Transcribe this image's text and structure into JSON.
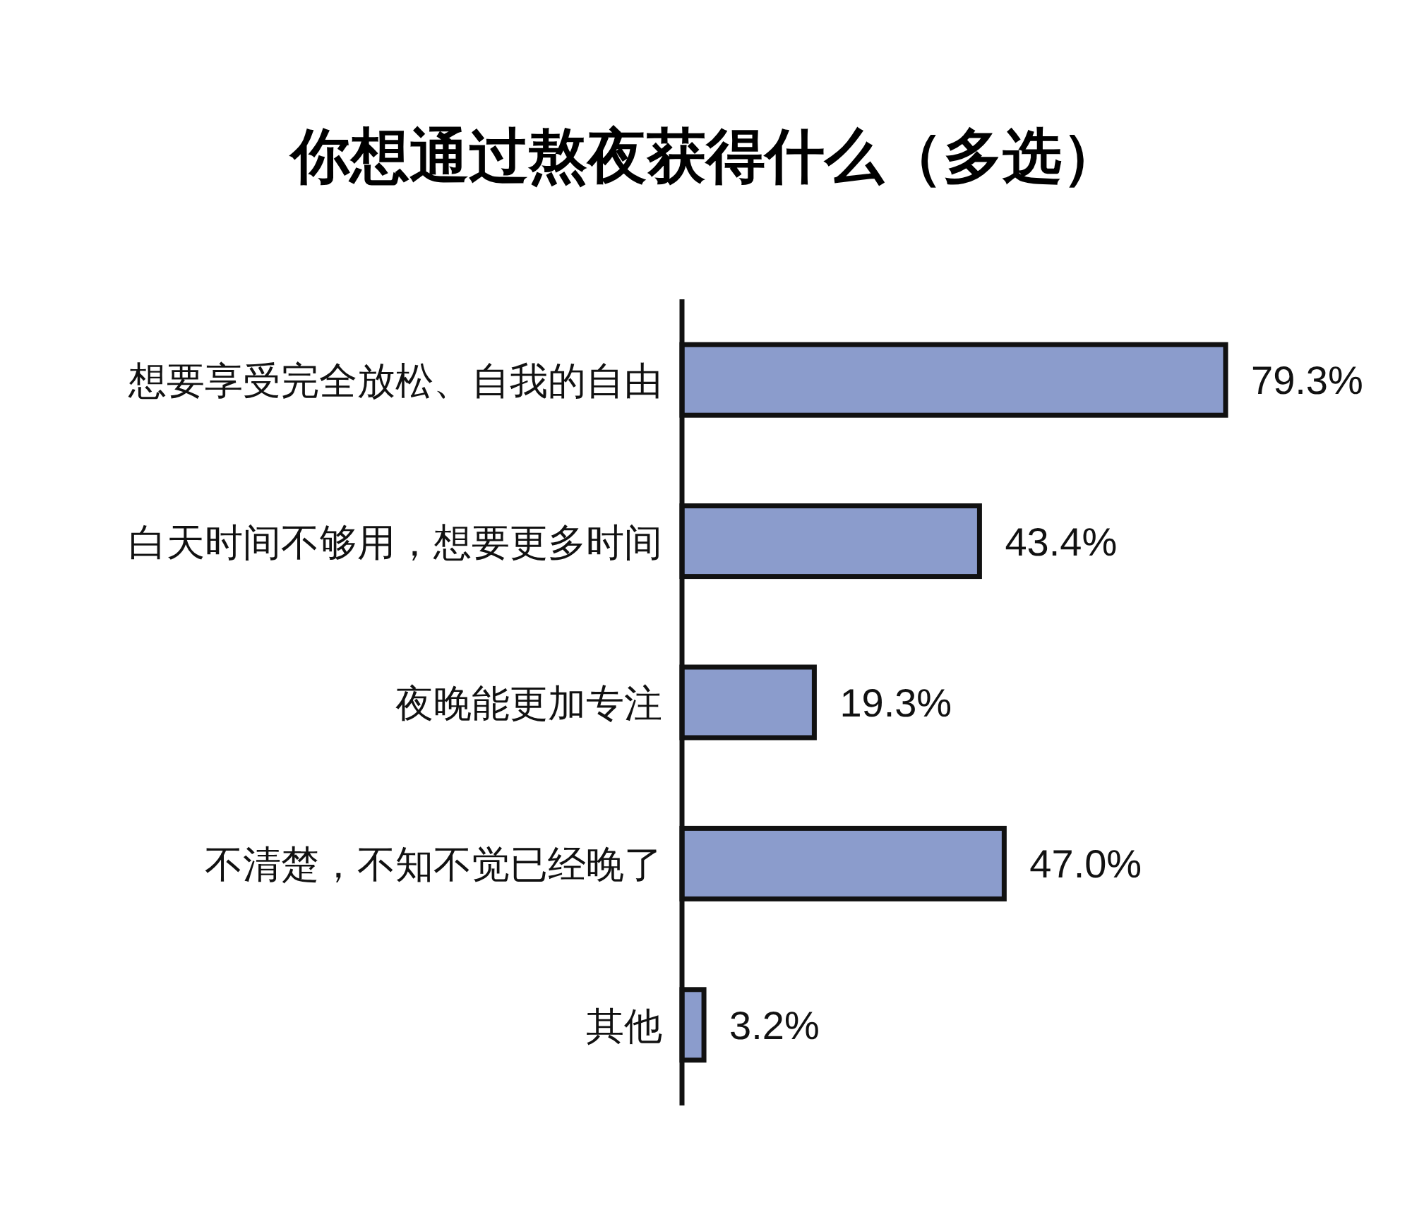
{
  "chart_data": {
    "type": "bar",
    "orientation": "horizontal",
    "title": "你想通过熬夜获得什么（多选）",
    "categories": [
      "想要享受完全放松、自我的自由",
      "白天时间不够用，想要更多时间",
      "夜晚能更加专注",
      "不清楚，不知不觉已经晚了",
      "其他"
    ],
    "values": [
      79.3,
      43.4,
      19.3,
      47.0,
      3.2
    ],
    "value_labels": [
      "79.3%",
      "43.4%",
      "19.3%",
      "47.0%",
      "3.2%"
    ],
    "color": "#8b9ccc"
  }
}
